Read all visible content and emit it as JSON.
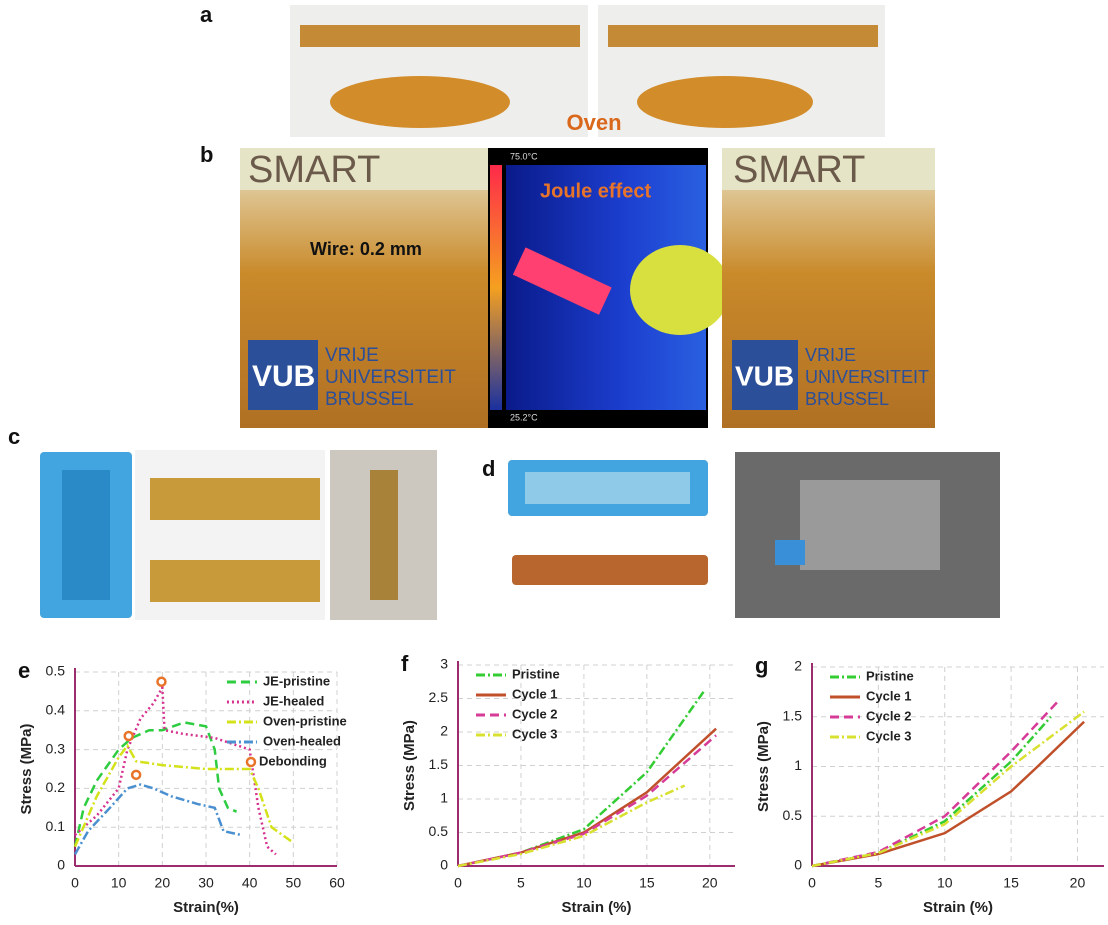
{
  "figure": {
    "a_label": "a",
    "oven": "Oven",
    "b_label": "b",
    "smart": "SMART",
    "wire": "Wire: 0.2 mm",
    "joule": "Joule effect",
    "temp_max": "75.0°C",
    "temp_min": "25.2°C",
    "vub": "VUB",
    "univ": [
      "VRIJE",
      "UNIVERSITEIT",
      "BRUSSEL"
    ],
    "c_label": "c",
    "d_label": "d"
  },
  "chart_data": [
    {
      "type": "line",
      "label": "e",
      "x_label": "Strain(%)",
      "y_label": "Stress (MPa)",
      "xlim": [
        0,
        60
      ],
      "xticks": [
        0,
        10,
        20,
        30,
        40,
        50,
        60
      ],
      "ylim": [
        0,
        0.5
      ],
      "yticks": [
        0,
        0.1,
        0.2,
        0.3,
        0.4,
        0.5
      ],
      "grid": true,
      "legend": "upper right",
      "series": [
        {
          "name": "JE-pristine",
          "color": "#2ecc40",
          "style": "dashed",
          "x": [
            0,
            2,
            5,
            10,
            13,
            17,
            20,
            25,
            30,
            32,
            33,
            35,
            37
          ],
          "values": [
            0.05,
            0.15,
            0.22,
            0.3,
            0.33,
            0.35,
            0.35,
            0.37,
            0.36,
            0.3,
            0.2,
            0.15,
            0.14
          ]
        },
        {
          "name": "JE-healed",
          "color": "#d6318f",
          "style": "dotted",
          "x": [
            0,
            5,
            10,
            12,
            15,
            18,
            20,
            20.5,
            25,
            32,
            40,
            42,
            44,
            46
          ],
          "values": [
            0.08,
            0.13,
            0.2,
            0.3,
            0.38,
            0.42,
            0.46,
            0.35,
            0.34,
            0.33,
            0.3,
            0.15,
            0.05,
            0.03
          ]
        },
        {
          "name": "Oven-pristine",
          "color": "#d4e21a",
          "style": "dash-dot",
          "x": [
            0,
            5,
            10,
            12,
            14,
            20,
            30,
            40,
            42,
            45,
            50
          ],
          "values": [
            0.05,
            0.18,
            0.28,
            0.31,
            0.27,
            0.26,
            0.25,
            0.25,
            0.2,
            0.1,
            0.06
          ]
        },
        {
          "name": "Oven-healed",
          "color": "#4a90d0",
          "style": "dash-dot",
          "x": [
            0,
            3,
            8,
            12,
            15,
            18,
            22,
            28,
            32,
            34,
            38
          ],
          "values": [
            0.03,
            0.09,
            0.15,
            0.2,
            0.21,
            0.2,
            0.18,
            0.16,
            0.15,
            0.09,
            0.08
          ]
        },
        {
          "name": "Debonding",
          "color": "#e8742a",
          "style": "marker",
          "x": [
            12.3,
            19.8,
            14
          ],
          "values": [
            0.335,
            0.475,
            0.235
          ]
        }
      ]
    },
    {
      "type": "line",
      "label": "f",
      "x_label": "Strain (%)",
      "y_label": "Stress (MPa)",
      "xlim": [
        0,
        22
      ],
      "xticks": [
        0,
        5,
        10,
        15,
        20
      ],
      "ylim": [
        0,
        3
      ],
      "yticks": [
        0,
        0.5,
        1,
        1.5,
        2,
        2.5,
        3
      ],
      "grid": true,
      "legend": "upper left",
      "series": [
        {
          "name": "Pristine",
          "color": "#33cc33",
          "style": "dash-dot",
          "x": [
            0,
            5,
            10,
            15,
            19.5
          ],
          "values": [
            0,
            0.2,
            0.55,
            1.4,
            2.6
          ]
        },
        {
          "name": "Cycle 1",
          "color": "#c0502a",
          "style": "solid",
          "x": [
            0,
            5,
            10,
            15,
            20.5
          ],
          "values": [
            0,
            0.2,
            0.5,
            1.1,
            2.05
          ]
        },
        {
          "name": "Cycle 2",
          "color": "#d63b97",
          "style": "dashed",
          "x": [
            0,
            5,
            10,
            15,
            20.5
          ],
          "values": [
            0,
            0.2,
            0.48,
            1.05,
            1.95
          ]
        },
        {
          "name": "Cycle 3",
          "color": "#d8e030",
          "style": "dash-dot",
          "x": [
            0,
            5,
            10,
            15,
            18
          ],
          "values": [
            0,
            0.18,
            0.45,
            0.95,
            1.2
          ]
        }
      ]
    },
    {
      "type": "line",
      "label": "g",
      "x_label": "Strain (%)",
      "y_label": "Stress (MPa)",
      "xlim": [
        0,
        22
      ],
      "xticks": [
        0,
        5,
        10,
        15,
        20
      ],
      "ylim": [
        0,
        2
      ],
      "yticks": [
        0,
        0.5,
        1,
        1.5,
        2
      ],
      "grid": true,
      "legend": "upper left",
      "series": [
        {
          "name": "Pristine",
          "color": "#33cc33",
          "style": "dash-dot",
          "x": [
            0,
            5,
            10,
            15,
            18
          ],
          "values": [
            0,
            0.13,
            0.45,
            1.05,
            1.5
          ]
        },
        {
          "name": "Cycle 1",
          "color": "#c0502a",
          "style": "solid",
          "x": [
            0,
            5,
            10,
            15,
            17,
            20.5
          ],
          "values": [
            0,
            0.12,
            0.33,
            0.75,
            1.0,
            1.45
          ]
        },
        {
          "name": "Cycle 2",
          "color": "#d63b97",
          "style": "dashed",
          "x": [
            0,
            5,
            10,
            15,
            18.5
          ],
          "values": [
            0,
            0.14,
            0.5,
            1.15,
            1.65
          ]
        },
        {
          "name": "Cycle 3",
          "color": "#d8e030",
          "style": "dash-dot",
          "x": [
            0,
            5,
            10,
            15,
            20.5
          ],
          "values": [
            0,
            0.13,
            0.42,
            1.0,
            1.55
          ]
        }
      ]
    }
  ]
}
